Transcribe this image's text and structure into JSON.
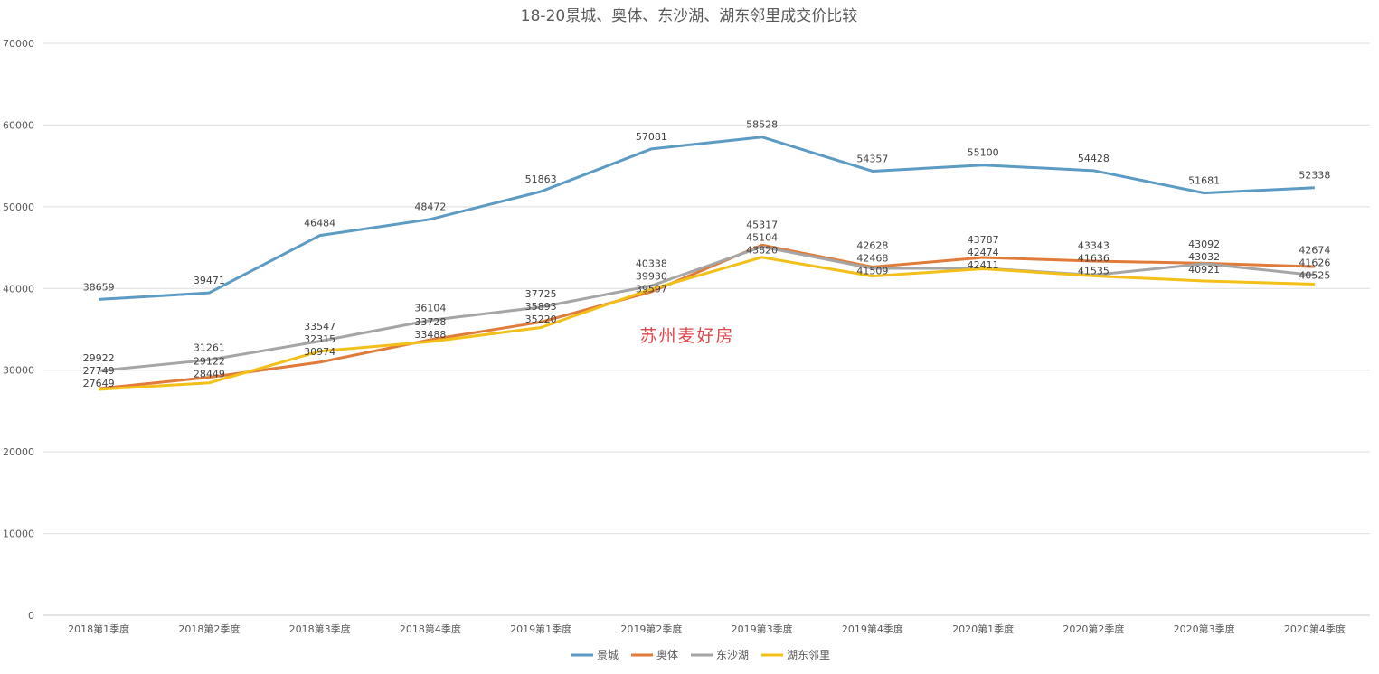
{
  "chart_data": {
    "type": "line",
    "title": "18-20景城、奥体、东沙湖、湖东邻里成交价比较",
    "xlabel": "",
    "ylabel": "",
    "ylim": [
      0,
      70000
    ],
    "yticks": [
      0,
      10000,
      20000,
      30000,
      40000,
      50000,
      60000,
      70000
    ],
    "grid": true,
    "legend": "bottom",
    "categories": [
      "2018第1季度",
      "2018第2季度",
      "2018第3季度",
      "2018第4季度",
      "2019第1季度",
      "2019第2季度",
      "2019第3季度",
      "2019第4季度",
      "2020第1季度",
      "2020第2季度",
      "2020第3季度",
      "2020第4季度"
    ],
    "series": [
      {
        "name": "景城",
        "color": "#5B9BC4",
        "values": [
          38659,
          39471,
          46484,
          48472,
          51863,
          57081,
          58528,
          54357,
          55100,
          54428,
          51681,
          52338
        ]
      },
      {
        "name": "奥体",
        "color": "#E07B39",
        "values": [
          27749,
          29122,
          30974,
          33728,
          35893,
          39597,
          45317,
          42628,
          43787,
          43343,
          43092,
          42674
        ]
      },
      {
        "name": "东沙湖",
        "color": "#A5A5A5",
        "values": [
          29922,
          31261,
          33547,
          36104,
          37725,
          40338,
          45104,
          42468,
          42474,
          41636,
          43032,
          41626
        ]
      },
      {
        "name": "湖东邻里",
        "color": "#F2C018",
        "values": [
          27649,
          28449,
          32315,
          33488,
          35220,
          39930,
          43820,
          41509,
          42411,
          41535,
          40921,
          40525
        ]
      }
    ]
  },
  "watermark": "苏州麦好房"
}
